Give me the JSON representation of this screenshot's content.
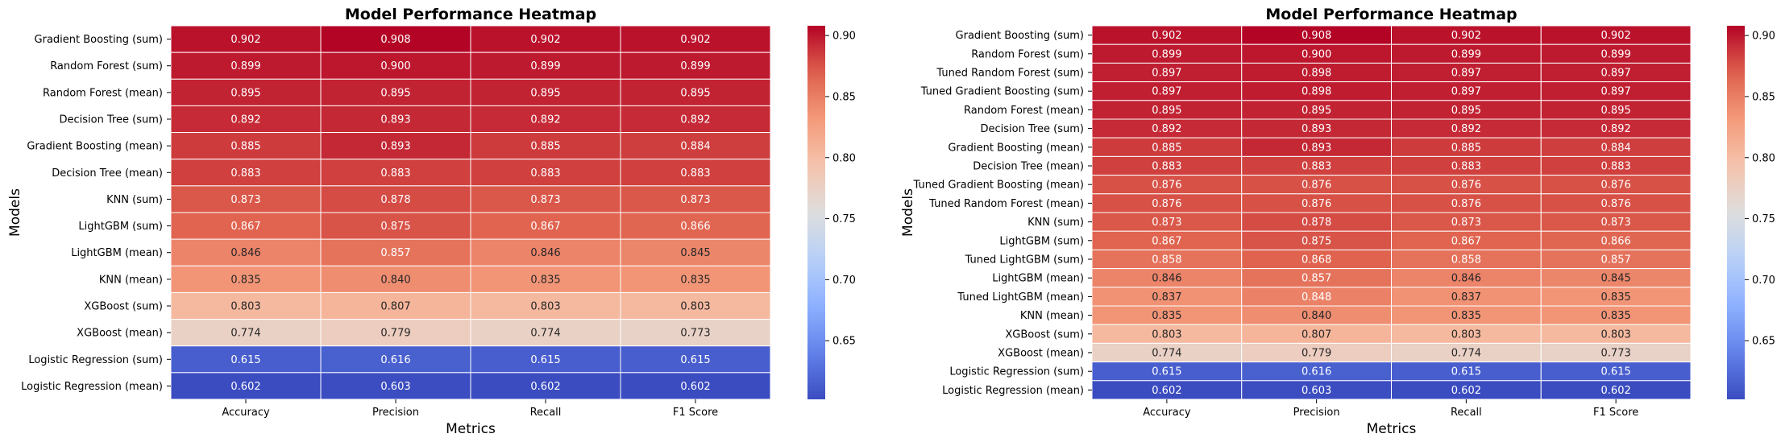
{
  "chart_data": [
    {
      "type": "heatmap",
      "title": "Model Performance Heatmap",
      "xlabel": "Metrics",
      "ylabel": "Models",
      "columns": [
        "Accuracy",
        "Precision",
        "Recall",
        "F1 Score"
      ],
      "rows": [
        {
          "name": "Gradient Boosting (sum)",
          "values": [
            0.902,
            0.908,
            0.902,
            0.902
          ],
          "highlight": false
        },
        {
          "name": "Random Forest (sum)",
          "values": [
            0.899,
            0.9,
            0.899,
            0.899
          ],
          "highlight": false
        },
        {
          "name": "Random Forest (mean)",
          "values": [
            0.895,
            0.895,
            0.895,
            0.895
          ],
          "highlight": false
        },
        {
          "name": "Decision Tree (sum)",
          "values": [
            0.892,
            0.893,
            0.892,
            0.892
          ],
          "highlight": false
        },
        {
          "name": "Gradient Boosting (mean)",
          "values": [
            0.885,
            0.893,
            0.885,
            0.884
          ],
          "highlight": false
        },
        {
          "name": "Decision Tree (mean)",
          "values": [
            0.883,
            0.883,
            0.883,
            0.883
          ],
          "highlight": false
        },
        {
          "name": "KNN (sum)",
          "values": [
            0.873,
            0.878,
            0.873,
            0.873
          ],
          "highlight": false
        },
        {
          "name": "LightGBM (sum)",
          "values": [
            0.867,
            0.875,
            0.867,
            0.866
          ],
          "highlight": false
        },
        {
          "name": "LightGBM (mean)",
          "values": [
            0.846,
            0.857,
            0.846,
            0.845
          ],
          "highlight": false
        },
        {
          "name": "KNN (mean)",
          "values": [
            0.835,
            0.84,
            0.835,
            0.835
          ],
          "highlight": false
        },
        {
          "name": "XGBoost (sum)",
          "values": [
            0.803,
            0.807,
            0.803,
            0.803
          ],
          "highlight": false
        },
        {
          "name": "XGBoost (mean)",
          "values": [
            0.774,
            0.779,
            0.774,
            0.773
          ],
          "highlight": false
        },
        {
          "name": "Logistic Regression (sum)",
          "values": [
            0.615,
            0.616,
            0.615,
            0.615
          ],
          "highlight": false
        },
        {
          "name": "Logistic Regression (mean)",
          "values": [
            0.602,
            0.603,
            0.602,
            0.602
          ],
          "highlight": false
        }
      ],
      "colorbar": {
        "ticks": [
          "0.65",
          "0.70",
          "0.75",
          "0.80",
          "0.85",
          "0.90"
        ],
        "vmin": 0.602,
        "vmax": 0.908,
        "colormap": "coolwarm"
      },
      "highlight_color": "#0000ff"
    },
    {
      "type": "heatmap",
      "title": "Model Performance Heatmap",
      "xlabel": "Metrics",
      "ylabel": "Models",
      "columns": [
        "Accuracy",
        "Precision",
        "Recall",
        "F1 Score"
      ],
      "rows": [
        {
          "name": "Gradient Boosting (sum)",
          "values": [
            0.902,
            0.908,
            0.902,
            0.902
          ],
          "highlight": false
        },
        {
          "name": "Random Forest (sum)",
          "values": [
            0.899,
            0.9,
            0.899,
            0.899
          ],
          "highlight": false
        },
        {
          "name": "Tuned Random Forest (sum)",
          "values": [
            0.897,
            0.898,
            0.897,
            0.897
          ],
          "highlight": true
        },
        {
          "name": "Tuned Gradient Boosting (sum)",
          "values": [
            0.897,
            0.898,
            0.897,
            0.897
          ],
          "highlight": true
        },
        {
          "name": "Random Forest (mean)",
          "values": [
            0.895,
            0.895,
            0.895,
            0.895
          ],
          "highlight": false
        },
        {
          "name": "Decision Tree (sum)",
          "values": [
            0.892,
            0.893,
            0.892,
            0.892
          ],
          "highlight": false
        },
        {
          "name": "Gradient Boosting (mean)",
          "values": [
            0.885,
            0.893,
            0.885,
            0.884
          ],
          "highlight": false
        },
        {
          "name": "Decision Tree (mean)",
          "values": [
            0.883,
            0.883,
            0.883,
            0.883
          ],
          "highlight": false
        },
        {
          "name": "Tuned Gradient Boosting (mean)",
          "values": [
            0.876,
            0.876,
            0.876,
            0.876
          ],
          "highlight": true
        },
        {
          "name": "Tuned Random Forest (mean)",
          "values": [
            0.876,
            0.876,
            0.876,
            0.876
          ],
          "highlight": true
        },
        {
          "name": "KNN (sum)",
          "values": [
            0.873,
            0.878,
            0.873,
            0.873
          ],
          "highlight": false
        },
        {
          "name": "LightGBM (sum)",
          "values": [
            0.867,
            0.875,
            0.867,
            0.866
          ],
          "highlight": false
        },
        {
          "name": "Tuned LightGBM (sum)",
          "values": [
            0.858,
            0.868,
            0.858,
            0.857
          ],
          "highlight": true
        },
        {
          "name": "LightGBM (mean)",
          "values": [
            0.846,
            0.857,
            0.846,
            0.845
          ],
          "highlight": false
        },
        {
          "name": "Tuned LightGBM (mean)",
          "values": [
            0.837,
            0.848,
            0.837,
            0.835
          ],
          "highlight": true
        },
        {
          "name": "KNN (mean)",
          "values": [
            0.835,
            0.84,
            0.835,
            0.835
          ],
          "highlight": false
        },
        {
          "name": "XGBoost (sum)",
          "values": [
            0.803,
            0.807,
            0.803,
            0.803
          ],
          "highlight": false
        },
        {
          "name": "XGBoost (mean)",
          "values": [
            0.774,
            0.779,
            0.774,
            0.773
          ],
          "highlight": false
        },
        {
          "name": "Logistic Regression (sum)",
          "values": [
            0.615,
            0.616,
            0.615,
            0.615
          ],
          "highlight": false
        },
        {
          "name": "Logistic Regression (mean)",
          "values": [
            0.602,
            0.603,
            0.602,
            0.602
          ],
          "highlight": false
        }
      ],
      "colorbar": {
        "ticks": [
          "0.65",
          "0.70",
          "0.75",
          "0.80",
          "0.85",
          "0.90"
        ],
        "vmin": 0.602,
        "vmax": 0.908,
        "colormap": "coolwarm"
      },
      "highlight_color": "#0000ff"
    }
  ]
}
